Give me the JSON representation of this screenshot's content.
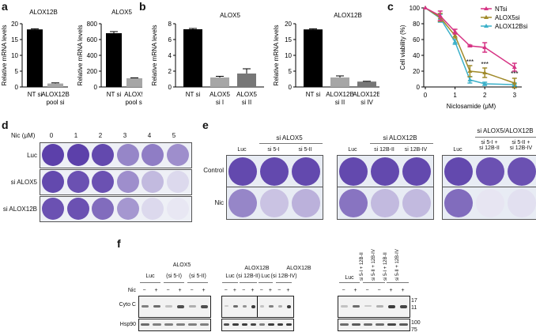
{
  "panels": {
    "a": {
      "label": "a"
    },
    "b": {
      "label": "b"
    },
    "c": {
      "label": "c"
    },
    "d": {
      "label": "d"
    },
    "e": {
      "label": "e"
    },
    "f": {
      "label": "f"
    }
  },
  "chart_data": [
    {
      "id": "a1",
      "type": "bar",
      "title": "ALOX12B",
      "ylabel": "Relative mRNA levels",
      "categories": [
        "NT si",
        "ALOX12B pool si"
      ],
      "values": [
        18.2,
        1.1
      ],
      "errors": [
        0.2,
        0.2
      ],
      "colors": [
        "#000000",
        "#a6a6a6"
      ],
      "ylim": [
        0,
        20
      ],
      "yticks": [
        0,
        5,
        10,
        15,
        20
      ]
    },
    {
      "id": "a2",
      "type": "bar",
      "title": "ALOX5",
      "ylabel": "Relative mRNA levels",
      "categories": [
        "NT si",
        "ALOX5 pool si"
      ],
      "values": [
        680,
        110
      ],
      "errors": [
        20,
        5
      ],
      "colors": [
        "#000000",
        "#a6a6a6"
      ],
      "ylim": [
        0,
        800
      ],
      "yticks": [
        0,
        200,
        400,
        600,
        800
      ]
    },
    {
      "id": "b1",
      "type": "bar",
      "title": "ALOX5",
      "ylabel": "Relative mRNA levels",
      "categories": [
        "NT si",
        "ALOX5 si I",
        "ALOX5 si II"
      ],
      "values": [
        7.3,
        1.2,
        1.7
      ],
      "errors": [
        0.1,
        0.15,
        0.6
      ],
      "colors": [
        "#000000",
        "#a6a6a6",
        "#777777"
      ],
      "ylim": [
        0,
        8
      ],
      "yticks": [
        0,
        2,
        4,
        6,
        8
      ]
    },
    {
      "id": "b2",
      "type": "bar",
      "title": "ALOX12B",
      "ylabel": "Relative mRNA levels",
      "categories": [
        "NT si",
        "ALOX12B si II",
        "ALOX12B si IV"
      ],
      "values": [
        18.2,
        3.0,
        1.7
      ],
      "errors": [
        0.2,
        0.5,
        0.1
      ],
      "colors": [
        "#000000",
        "#a6a6a6",
        "#777777"
      ],
      "ylim": [
        0,
        20
      ],
      "yticks": [
        0,
        5,
        10,
        15,
        20
      ]
    },
    {
      "id": "c",
      "type": "line",
      "title": "",
      "xlabel": "Niclosamide (μM)",
      "ylabel": "Cell viability (%)",
      "x": [
        0,
        0.5,
        1,
        1.5,
        2,
        3
      ],
      "xticks": [
        0,
        1,
        2,
        3
      ],
      "yticks": [
        0,
        20,
        40,
        60,
        80,
        100
      ],
      "ylim": [
        0,
        100
      ],
      "series": [
        {
          "name": "NTsi",
          "color": "#d63384",
          "values": [
            100,
            90,
            70,
            52,
            50,
            25
          ],
          "errors": [
            0,
            6,
            3,
            1,
            6,
            5
          ]
        },
        {
          "name": "ALOX5si",
          "color": "#a08a2a",
          "values": [
            100,
            88,
            65,
            20,
            18,
            5
          ],
          "errors": [
            0,
            5,
            3,
            7,
            6,
            6
          ]
        },
        {
          "name": "ALOX12Bsi",
          "color": "#3bb0c9",
          "values": [
            100,
            87,
            57,
            9,
            4,
            3
          ],
          "errors": [
            0,
            5,
            3,
            4,
            2,
            2
          ]
        }
      ],
      "annotations": [
        {
          "x": 1.5,
          "text": "***"
        },
        {
          "x": 2,
          "text": "***"
        },
        {
          "x": 3,
          "text": "***"
        }
      ],
      "legend_position": "upper right"
    }
  ],
  "panel_d": {
    "header_label": "Nic (μM)",
    "doses": [
      "0",
      "1",
      "2",
      "3",
      "4",
      "5"
    ],
    "rows": [
      {
        "label": "Luc",
        "intensity": [
          1,
          1,
          0.95,
          0.6,
          0.65,
          0.55
        ]
      },
      {
        "label": "si ALOX5",
        "intensity": [
          0.95,
          0.9,
          0.9,
          0.55,
          0.3,
          0.12
        ]
      },
      {
        "label": "si ALOX12B",
        "intensity": [
          0.9,
          0.9,
          0.75,
          0.5,
          0.12,
          0.04
        ]
      }
    ]
  },
  "panel_e": {
    "row_labels": [
      "Control",
      "Nic"
    ],
    "groups": [
      {
        "group_label": "si ALOX5",
        "columns": [
          "Luc",
          "si 5-I",
          "si 5-II"
        ],
        "control": [
          0.95,
          0.95,
          0.95
        ],
        "nic": [
          0.6,
          0.25,
          0.35
        ]
      },
      {
        "group_label": "si ALOX12B",
        "columns": [
          "Luc",
          "si 12B-II",
          "si 12B-IV"
        ],
        "control": [
          0.95,
          0.95,
          0.95
        ],
        "nic": [
          0.7,
          0.3,
          0.3
        ]
      },
      {
        "group_label": "si ALOX5/ALOX12B",
        "columns": [
          "Luc",
          "si 5-I + si 12B-II",
          "si 5-II + si 12B-IV"
        ],
        "control": [
          0.95,
          0.9,
          0.9
        ],
        "nic": [
          0.75,
          0.05,
          0.08
        ]
      }
    ]
  },
  "panel_f": {
    "nic_label": "Nic",
    "row_labels": [
      "Cyto C",
      "Hsp90"
    ],
    "blot1": {
      "title": "ALOX5",
      "groups": [
        "Luc",
        "(si 5-I)",
        "(si 5-II)"
      ],
      "nic": [
        "−",
        "+",
        "−",
        "+",
        "−",
        "+"
      ]
    },
    "blot2": {
      "titles": [
        "ALOX12B",
        "ALOX12B"
      ],
      "groups": [
        "Luc",
        "(si 12B-II)",
        "Luc",
        "(si 12B-IV)"
      ],
      "nic": [
        "−",
        "+",
        "−",
        "+",
        "−",
        "+",
        "−",
        "+"
      ]
    },
    "blot3": {
      "groups": [
        "Luc",
        "si 5-I + 12B-II",
        "si 5-II + 12B-IV",
        "si 5-I + 12B-II",
        "si 5-II + 12B-IV"
      ],
      "nic": [
        "−",
        "+",
        "−",
        "−",
        "+",
        "+"
      ]
    },
    "mw_markers": [
      "17",
      "11",
      "100",
      "75"
    ]
  }
}
